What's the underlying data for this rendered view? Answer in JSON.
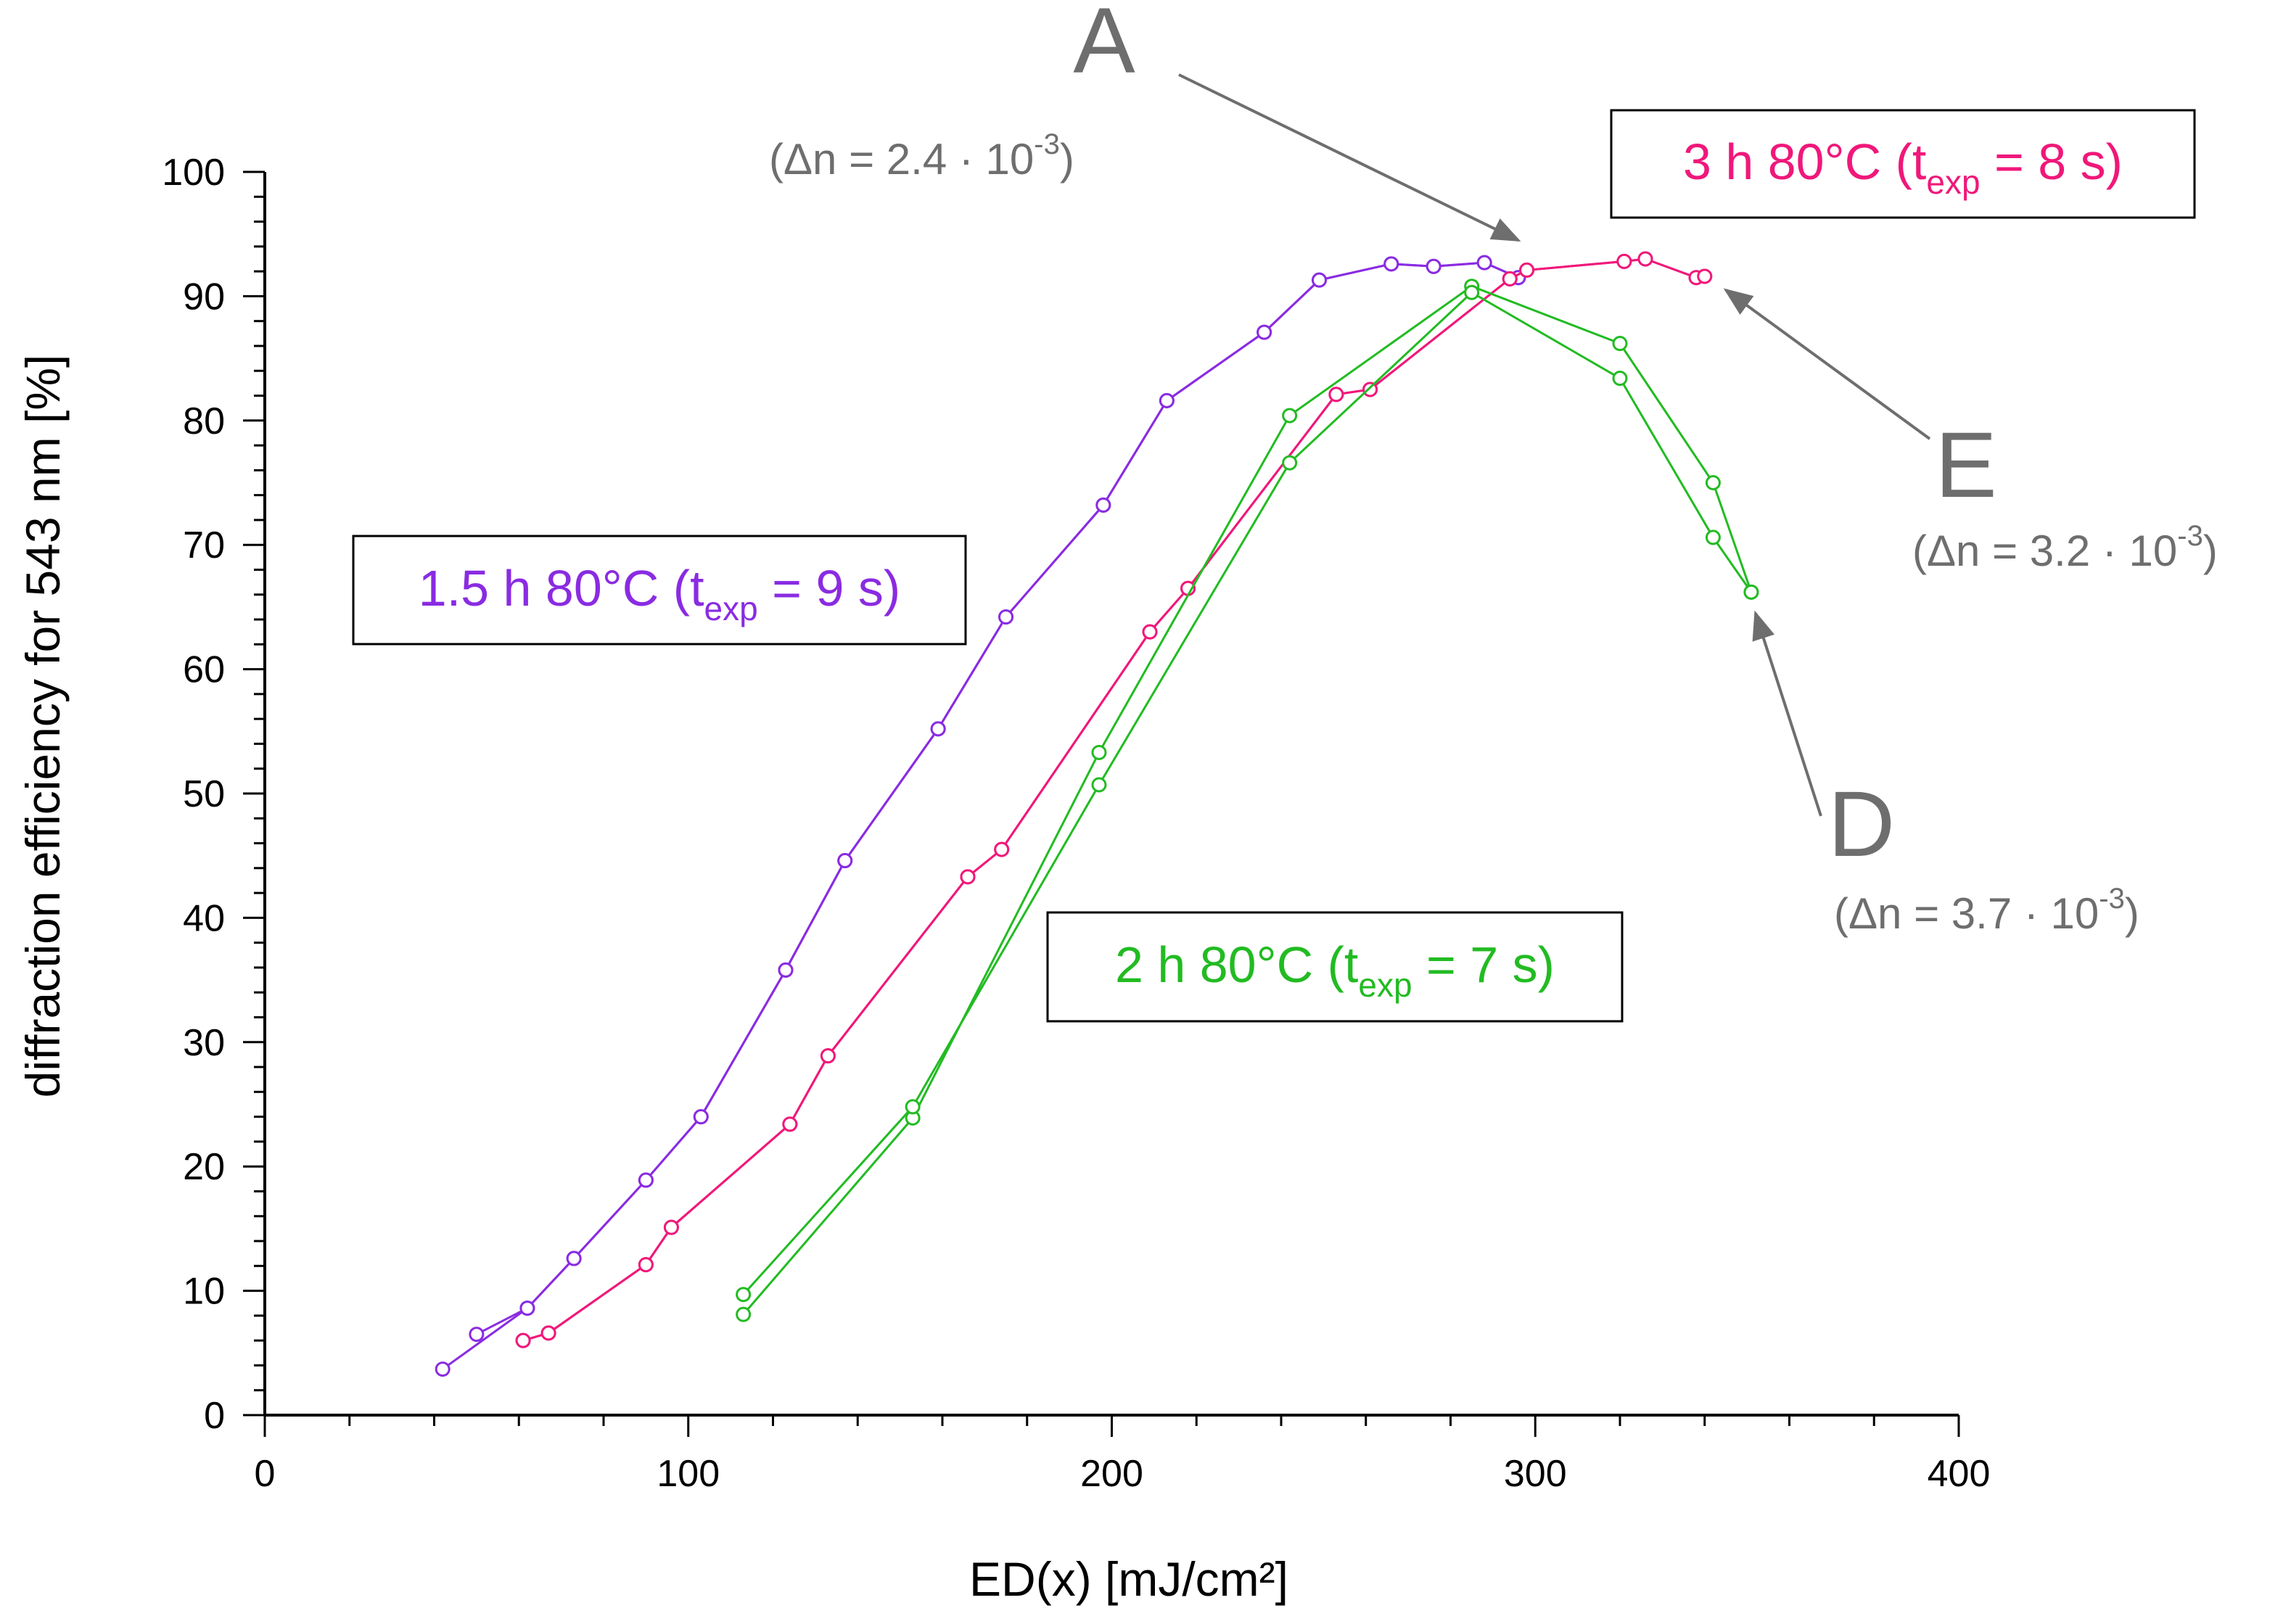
{
  "chart_data": {
    "type": "line",
    "title": "",
    "xlabel": "ED(x) [mJ/cm²]",
    "ylabel": "diffraction efficiency for 543 nm [%]",
    "xlim": [
      0,
      400
    ],
    "ylim": [
      0,
      100
    ],
    "x_ticks": [
      0,
      100,
      200,
      300,
      400
    ],
    "y_ticks": [
      0,
      10,
      20,
      30,
      40,
      50,
      60,
      70,
      80,
      90,
      100
    ],
    "grid": false,
    "legend": [
      {
        "series": "1.5h",
        "prefix": "1.5 h 80°C (t",
        "sub": "exp",
        "suffix": " = 9 s)"
      },
      {
        "series": "3h",
        "prefix": "3 h 80°C (t",
        "sub": "exp",
        "suffix": " = 8 s)"
      },
      {
        "series": "2h",
        "prefix": "2 h 80°C (t",
        "sub": "exp",
        "suffix": " = 7 s)"
      }
    ],
    "series": [
      {
        "name": "1.5h",
        "color": "#8a2be2",
        "curves": [
          {
            "x": [
              42,
              62,
              73,
              90,
              103,
              123,
              137,
              159,
              175,
              198,
              213,
              236,
              249,
              266,
              276,
              288,
              296
            ],
            "y": [
              3.7,
              8.6,
              12.6,
              18.9,
              24.0,
              35.8,
              44.6,
              55.2,
              64.2,
              73.2,
              81.6,
              87.1,
              91.3,
              92.6,
              92.4,
              92.7,
              91.5
            ]
          },
          {
            "x": [
              50,
              62,
              73,
              90,
              103,
              123,
              137,
              159,
              175,
              198,
              213,
              236,
              249,
              266,
              276,
              288,
              296
            ],
            "y": [
              6.5,
              8.6,
              12.6,
              18.9,
              24.0,
              35.8,
              44.6,
              55.2,
              64.2,
              73.2,
              81.6,
              87.1,
              91.3,
              92.6,
              92.4,
              92.7,
              91.5
            ]
          }
        ]
      },
      {
        "name": "3h",
        "color": "#f0187a",
        "curves": [
          {
            "x": [
              61,
              67,
              90,
              96,
              124,
              133,
              166,
              174,
              209,
              218,
              253,
              261,
              294,
              298,
              321,
              326,
              338,
              340
            ],
            "y": [
              6.0,
              6.6,
              12.1,
              15.1,
              23.4,
              28.9,
              43.3,
              45.5,
              63.0,
              66.5,
              82.1,
              82.5,
              91.4,
              92.1,
              92.8,
              93.0,
              91.5,
              91.6
            ]
          },
          {
            "x": [
              61,
              67,
              90,
              96,
              124,
              133,
              166,
              174,
              209,
              218,
              253,
              261,
              294,
              298,
              321,
              326,
              338,
              340
            ],
            "y": [
              6.0,
              6.6,
              12.1,
              15.1,
              23.4,
              28.9,
              43.3,
              45.5,
              63.0,
              66.5,
              82.1,
              82.5,
              91.4,
              92.1,
              92.8,
              93.0,
              91.5,
              91.6
            ]
          }
        ]
      },
      {
        "name": "2h",
        "color": "#22bb22",
        "curves": [
          {
            "x": [
              113,
              153,
              197,
              242,
              285,
              320,
              342,
              351
            ],
            "y": [
              8.1,
              23.9,
              53.3,
              80.4,
              90.8,
              86.2,
              75.0,
              66.2
            ]
          },
          {
            "x": [
              113,
              153,
              197,
              242,
              285,
              320,
              342,
              351
            ],
            "y": [
              9.7,
              24.8,
              50.7,
              76.6,
              90.3,
              83.4,
              70.6,
              66.2
            ]
          }
        ]
      }
    ],
    "annotations": [
      {
        "id": "A",
        "letter": "A",
        "dn_text": "(Δn = 2.4 · 10",
        "exp": "-3",
        "close": ")",
        "target": [
          296,
          94.5
        ]
      },
      {
        "id": "E",
        "letter": "E",
        "dn_text": "(Δn = 3.2 · 10",
        "exp": "-3",
        "close": ")",
        "target": [
          345,
          90.5
        ]
      },
      {
        "id": "D",
        "letter": "D",
        "dn_text": "(Δn = 3.7 · 10",
        "exp": "-3",
        "close": ")",
        "target": [
          352,
          64.5
        ]
      }
    ]
  },
  "colors": {
    "axis": "#000000",
    "annotation": "#6e6e6e",
    "series_1_5h": "#8a2be2",
    "series_3h": "#f0187a",
    "series_2h": "#22bb22"
  }
}
